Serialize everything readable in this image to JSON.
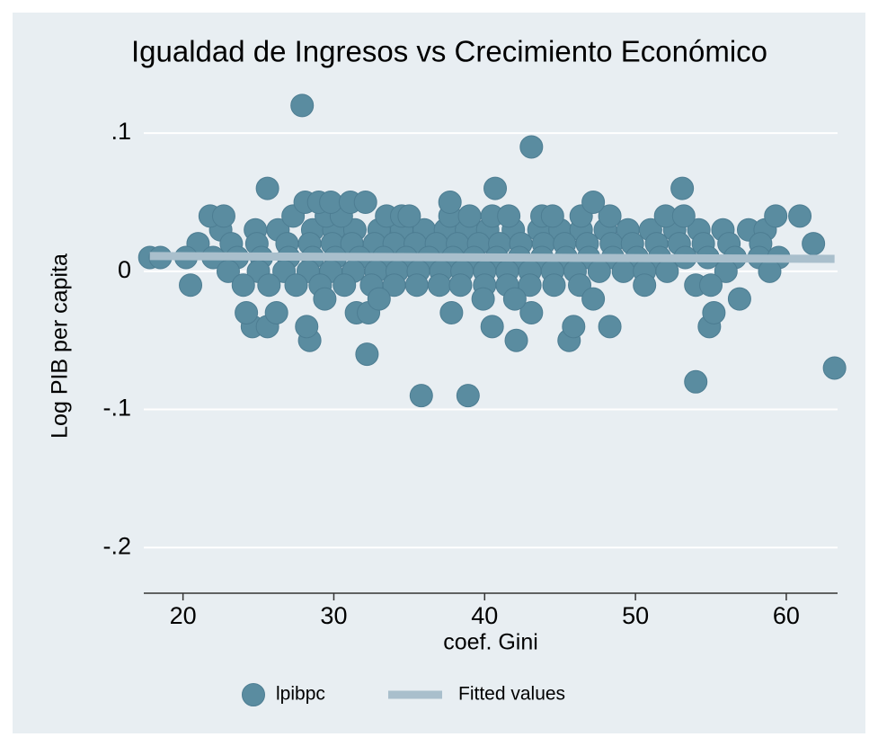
{
  "chart_data": {
    "type": "scatter",
    "title": "Igualdad de Ingresos vs Crecimiento Económico",
    "x_label": "coef. Gini",
    "y_label": "Log PIB per capita",
    "xlim": [
      17.4,
      63.4
    ],
    "ylim": [
      -0.233,
      0.13
    ],
    "xticks": [
      20,
      30,
      40,
      50,
      60
    ],
    "yticks": [
      {
        "value": -0.2,
        "label": "-.2"
      },
      {
        "value": -0.1,
        "label": "-.1"
      },
      0,
      {
        "value": 0.1,
        "label": ".1"
      }
    ],
    "grid": true,
    "legend": "bottom",
    "series": [
      {
        "name": "lpibpc",
        "type": "scatter",
        "color": "#5a8ca0",
        "x": [
          22.5,
          24.8,
          26.3,
          28.6,
          30.0,
          31.4,
          33.0,
          34.5,
          36.0,
          37.4,
          38.8,
          40.2,
          41.9,
          43.6,
          45.0,
          46.4,
          48.0,
          49.5,
          51.0,
          52.6,
          54.2,
          55.8,
          57.5,
          58.6,
          21.0,
          23.2,
          24.9,
          26.9,
          28.4,
          29.9,
          31.2,
          32.7,
          34.0,
          35.4,
          36.8,
          38.2,
          39.6,
          41.0,
          42.4,
          43.9,
          45.3,
          46.8,
          48.4,
          49.8,
          51.4,
          52.9,
          54.5,
          56.2,
          58.3,
          61.8,
          20.2,
          22.0,
          23.6,
          25.2,
          27.0,
          28.6,
          30.1,
          31.7,
          33.3,
          34.8,
          36.3,
          37.9,
          39.3,
          40.8,
          42.3,
          43.8,
          45.4,
          46.9,
          48.5,
          50.1,
          51.6,
          53.3,
          54.8,
          56.6,
          58.2,
          59.5,
          23.0,
          25.0,
          26.7,
          28.3,
          29.8,
          31.3,
          32.8,
          34.2,
          35.6,
          37.1,
          38.5,
          40.0,
          41.5,
          43.0,
          44.5,
          46.0,
          47.6,
          49.2,
          50.6,
          52.1,
          56.0,
          58.9,
          24.0,
          25.7,
          27.5,
          29.1,
          30.7,
          32.5,
          34.0,
          35.5,
          37.0,
          38.4,
          40.0,
          41.5,
          43.0,
          44.6,
          46.3,
          50.6,
          21.8,
          22.7,
          27.3,
          29.5,
          30.5,
          33.5,
          34.5,
          35.0,
          37.7,
          39.0,
          40.5,
          41.6,
          43.8,
          44.5,
          46.4,
          48.3,
          52.0,
          53.2,
          59.3,
          60.9,
          28.1,
          29.0,
          29.8,
          31.1,
          32.1,
          37.7,
          47.2,
          27.9,
          43.1,
          25.6,
          40.7,
          53.1,
          63.2,
          35.8,
          38.9,
          54.0,
          32.2,
          28.4,
          42.1,
          45.6,
          28.2,
          24.6,
          25.6,
          40.5,
          45.9,
          48.3,
          54.9,
          24.2,
          26.2,
          31.5,
          32.3,
          37.8,
          43.1,
          55.2,
          56.9,
          47.2,
          29.4,
          39.9,
          42.0,
          33.0,
          20.5,
          54.0,
          55.0,
          17.8,
          18.5
        ],
        "values": [
          0.03,
          0.03,
          0.03,
          0.03,
          0.03,
          0.03,
          0.03,
          0.03,
          0.03,
          0.03,
          0.03,
          0.03,
          0.03,
          0.03,
          0.03,
          0.03,
          0.03,
          0.03,
          0.03,
          0.03,
          0.03,
          0.03,
          0.03,
          0.03,
          0.02,
          0.02,
          0.02,
          0.02,
          0.02,
          0.02,
          0.02,
          0.02,
          0.02,
          0.02,
          0.02,
          0.02,
          0.02,
          0.02,
          0.02,
          0.02,
          0.02,
          0.02,
          0.02,
          0.02,
          0.02,
          0.02,
          0.02,
          0.02,
          0.02,
          0.02,
          0.01,
          0.01,
          0.01,
          0.01,
          0.01,
          0.01,
          0.01,
          0.01,
          0.01,
          0.01,
          0.01,
          0.01,
          0.01,
          0.01,
          0.01,
          0.01,
          0.01,
          0.01,
          0.01,
          0.01,
          0.01,
          0.01,
          0.01,
          0.01,
          0.01,
          0.01,
          0,
          0,
          0,
          0,
          0,
          0,
          0,
          0,
          0,
          0,
          0,
          0,
          0,
          0,
          0,
          0,
          0,
          0,
          0,
          0,
          0,
          0,
          -0.01,
          -0.01,
          -0.01,
          -0.01,
          -0.01,
          -0.01,
          -0.01,
          -0.01,
          -0.01,
          -0.01,
          -0.01,
          -0.01,
          -0.01,
          -0.01,
          -0.01,
          -0.01,
          0.04,
          0.04,
          0.04,
          0.04,
          0.04,
          0.04,
          0.04,
          0.04,
          0.04,
          0.04,
          0.04,
          0.04,
          0.04,
          0.04,
          0.04,
          0.04,
          0.04,
          0.04,
          0.04,
          0.04,
          0.05,
          0.05,
          0.05,
          0.05,
          0.05,
          0.05,
          0.05,
          0.12,
          0.09,
          0.06,
          0.06,
          0.06,
          -0.07,
          -0.09,
          -0.09,
          -0.08,
          -0.06,
          -0.05,
          -0.05,
          -0.05,
          -0.04,
          -0.04,
          -0.04,
          -0.04,
          -0.04,
          -0.04,
          -0.04,
          -0.03,
          -0.03,
          -0.03,
          -0.03,
          -0.03,
          -0.03,
          -0.03,
          -0.02,
          -0.02,
          -0.02,
          -0.02,
          -0.02,
          -0.02,
          -0.01,
          -0.01,
          -0.01,
          0.01,
          0.01
        ]
      },
      {
        "name": "Fitted values",
        "type": "line",
        "color": "#a9bfcc",
        "x": [
          17.8,
          63.2
        ],
        "values": [
          0.011,
          0.009
        ]
      }
    ]
  }
}
